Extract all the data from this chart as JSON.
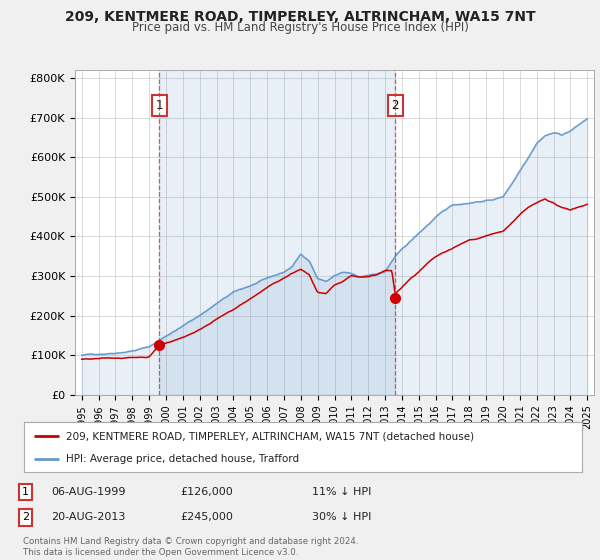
{
  "title": "209, KENTMERE ROAD, TIMPERLEY, ALTRINCHAM, WA15 7NT",
  "subtitle": "Price paid vs. HM Land Registry's House Price Index (HPI)",
  "ylabel_ticks": [
    "£0",
    "£100K",
    "£200K",
    "£300K",
    "£400K",
    "£500K",
    "£600K",
    "£700K",
    "£800K"
  ],
  "ytick_values": [
    0,
    100000,
    200000,
    300000,
    400000,
    500000,
    600000,
    700000,
    800000
  ],
  "ylim": [
    0,
    820000
  ],
  "xlim_start": 1994.6,
  "xlim_end": 2025.4,
  "legend_label_red": "209, KENTMERE ROAD, TIMPERLEY, ALTRINCHAM, WA15 7NT (detached house)",
  "legend_label_blue": "HPI: Average price, detached house, Trafford",
  "sale1_x": 1999.6,
  "sale1_y": 126000,
  "sale2_x": 2013.6,
  "sale2_y": 245000,
  "footer_line1": "Contains HM Land Registry data © Crown copyright and database right 2024.",
  "footer_line2": "This data is licensed under the Open Government Licence v3.0.",
  "table_row1": [
    "1",
    "06-AUG-1999",
    "£126,000",
    "11% ↓ HPI"
  ],
  "table_row2": [
    "2",
    "20-AUG-2013",
    "£245,000",
    "30% ↓ HPI"
  ],
  "red_color": "#cc0000",
  "blue_color": "#6699cc",
  "blue_fill_color": "#d0e4f7",
  "background_color": "#f0f0f0",
  "plot_background": "#ffffff",
  "grid_color": "#cccccc",
  "vline_color": "#cc3333",
  "shade_color": "#ddeeff"
}
